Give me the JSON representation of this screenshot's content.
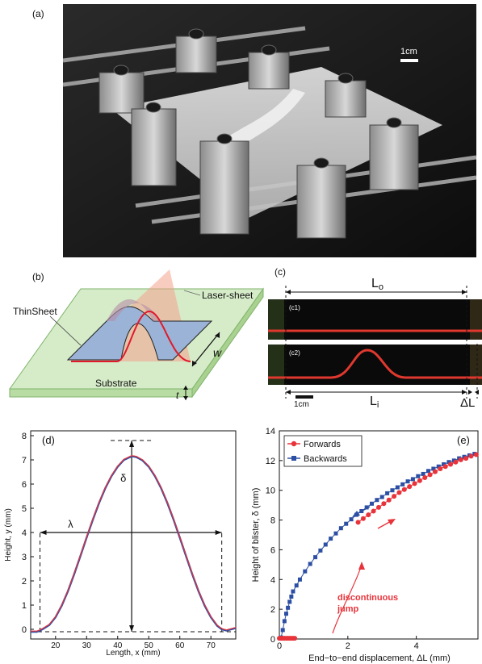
{
  "panel_a": {
    "label": "(a)",
    "scale_label": "1cm"
  },
  "panel_b": {
    "label": "(b)",
    "laser_label": "Laser-sheet",
    "sheet_label": "ThinSheet",
    "width_label": "w",
    "substrate_label": "Substrate",
    "thickness_label": "t"
  },
  "panel_c": {
    "label": "(c)",
    "c1_label": "(c1)",
    "c2_label": "(c2)",
    "outer_length_label": "L",
    "outer_length_sub": "o",
    "inner_length_label": "L",
    "inner_length_sub": "i",
    "scale_label": "1cm",
    "delta_label": "ΔL"
  },
  "panel_d": {
    "label": "(d)",
    "lambda_label": "λ",
    "delta_label": "δ"
  },
  "panel_e": {
    "label": "(e)",
    "arrow_note_line1": "discontinuous",
    "arrow_note_line2": "jump"
  },
  "colors": {
    "forwards": "#e8333a",
    "backwards": "#2d4fa3",
    "substrate": "#c9e6b8",
    "sheet": "#9bb3d6",
    "laser": "#f4a28c"
  },
  "chart_data": [
    {
      "type": "line",
      "xlabel": "Length, x (mm)",
      "ylabel": "Height, y (mm)",
      "xlim": [
        12,
        78
      ],
      "ylim": [
        -0.4,
        8.2
      ],
      "xticks": [
        20,
        30,
        40,
        50,
        60,
        70
      ],
      "yticks": [
        0,
        1,
        2,
        3,
        4,
        5,
        6,
        7,
        8
      ],
      "series": [
        {
          "x": [
            12,
            14,
            15,
            16,
            18,
            20,
            22,
            24,
            26,
            28,
            30,
            32,
            34,
            36,
            38,
            40,
            42,
            44,
            44.5,
            46,
            48,
            50,
            52,
            54,
            56,
            58,
            60,
            62,
            64,
            66,
            68,
            70,
            72,
            73.5,
            75,
            78
          ],
          "y": [
            -0.1,
            -0.1,
            -0.05,
            0.02,
            0.18,
            0.5,
            0.98,
            1.58,
            2.28,
            3.03,
            3.79,
            4.53,
            5.22,
            5.83,
            6.33,
            6.72,
            7.0,
            7.12,
            7.15,
            7.12,
            6.98,
            6.72,
            6.33,
            5.83,
            5.22,
            4.53,
            3.79,
            3.03,
            2.28,
            1.58,
            0.98,
            0.5,
            0.15,
            0.0,
            -0.05,
            0.05
          ]
        }
      ]
    },
    {
      "type": "scatter",
      "xlabel": "End−to−end displacement, ΔL (mm)",
      "ylabel": "Height of blister, δ (mm)",
      "xlim": [
        0,
        5.8
      ],
      "ylim": [
        0,
        14
      ],
      "xticks": [
        0,
        2,
        4
      ],
      "yticks": [
        0,
        2,
        4,
        6,
        8,
        10,
        12,
        14
      ],
      "legend_position": "top-left",
      "series": [
        {
          "name": "Forwards",
          "x": [
            0.0,
            0.05,
            0.1,
            0.15,
            0.2,
            0.25,
            0.3,
            0.35,
            0.4,
            0.45,
            2.3,
            2.45,
            2.6,
            2.75,
            2.9,
            3.05,
            3.2,
            3.35,
            3.5,
            3.65,
            3.8,
            3.95,
            4.1,
            4.25,
            4.4,
            4.55,
            4.7,
            4.85,
            5.0,
            5.15,
            5.3,
            5.45,
            5.6,
            5.75
          ],
          "y": [
            0.05,
            0.05,
            0.05,
            0.05,
            0.05,
            0.05,
            0.05,
            0.05,
            0.05,
            0.05,
            7.85,
            8.1,
            8.35,
            8.6,
            8.85,
            9.1,
            9.35,
            9.6,
            9.85,
            10.05,
            10.25,
            10.45,
            10.65,
            10.85,
            11.05,
            11.25,
            11.45,
            11.6,
            11.75,
            11.9,
            12.05,
            12.15,
            12.3,
            12.4
          ]
        },
        {
          "name": "Backwards",
          "x": [
            0.05,
            0.1,
            0.15,
            0.2,
            0.25,
            0.3,
            0.35,
            0.4,
            0.5,
            0.6,
            0.75,
            0.9,
            1.05,
            1.2,
            1.35,
            1.5,
            1.65,
            1.8,
            1.95,
            2.1,
            2.25,
            2.4,
            2.55,
            2.7,
            2.85,
            3.0,
            3.15,
            3.3,
            3.45,
            3.6,
            3.75,
            3.9,
            4.05,
            4.2,
            4.35,
            4.5,
            4.65,
            4.8,
            4.95,
            5.1,
            5.25,
            5.4,
            5.55,
            5.7
          ],
          "y": [
            0.1,
            0.6,
            1.2,
            1.7,
            2.1,
            2.5,
            2.85,
            3.2,
            3.6,
            4.0,
            4.55,
            5.05,
            5.5,
            5.95,
            6.35,
            6.75,
            7.1,
            7.45,
            7.75,
            8.05,
            8.35,
            8.6,
            8.85,
            9.1,
            9.35,
            9.55,
            9.8,
            10.0,
            10.2,
            10.4,
            10.6,
            10.75,
            10.95,
            11.1,
            11.3,
            11.45,
            11.6,
            11.75,
            11.9,
            12.0,
            12.15,
            12.25,
            12.35,
            12.45
          ]
        }
      ]
    }
  ]
}
